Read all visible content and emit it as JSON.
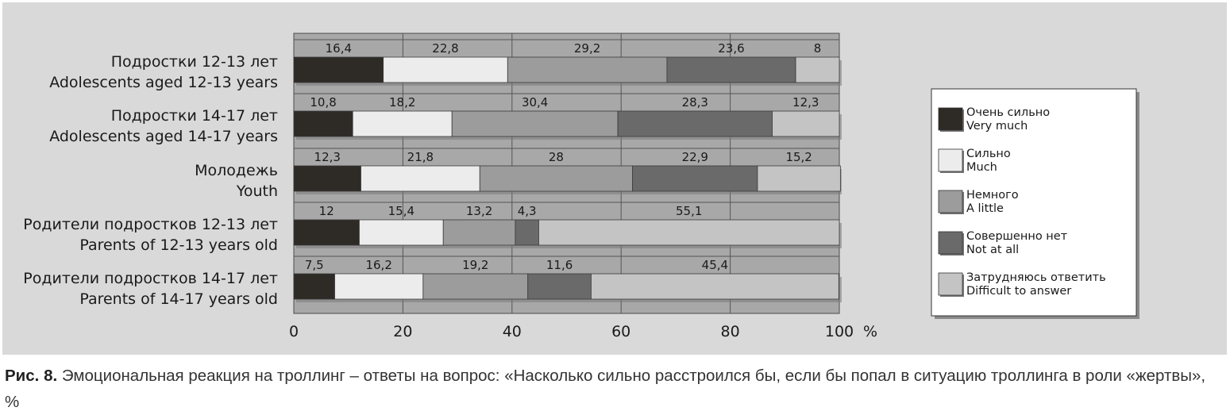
{
  "chart_data": {
    "type": "bar",
    "stacked": true,
    "orientation": "horizontal",
    "categories": [
      {
        "ru": "Подростки 12-13 лет",
        "en": "Adolescents aged 12-13 years"
      },
      {
        "ru": "Подростки 14-17 лет",
        "en": "Adolescents aged 14-17 years"
      },
      {
        "ru": "Молодежь",
        "en": "Youth"
      },
      {
        "ru": "Родители подростков 12-13 лет",
        "en": "Parents of 12-13 years old"
      },
      {
        "ru": "Родители подростков 14-17 лет",
        "en": "Parents of 14-17 years old"
      }
    ],
    "series": [
      {
        "name": "Очень сильно",
        "name_en": "Very much",
        "color": "#2e2a26",
        "values": [
          16.4,
          10.8,
          12.3,
          12,
          7.5
        ]
      },
      {
        "name": "Сильно",
        "name_en": "Much",
        "color": "#ececec",
        "values": [
          22.8,
          18.2,
          21.8,
          15.4,
          16.2
        ]
      },
      {
        "name": "Немного",
        "name_en": "A little",
        "color": "#9c9c9c",
        "values": [
          29.2,
          30.4,
          28,
          13.2,
          19.2
        ]
      },
      {
        "name": "Совершенно нет",
        "name_en": "Not at all",
        "color": "#6a6a6a",
        "values": [
          23.6,
          28.3,
          22.9,
          4.3,
          11.6
        ]
      },
      {
        "name": "Затрудняюсь ответить",
        "name_en": "Difficult to answer",
        "color": "#c4c4c4",
        "values": [
          8,
          12.3,
          15.2,
          55.1,
          45.4
        ]
      }
    ],
    "data_labels": [
      [
        "16,4",
        "22,8",
        "29,2",
        "23,6",
        "8"
      ],
      [
        "10,8",
        "18,2",
        "30,4",
        "28,3",
        "12,3"
      ],
      [
        "12,3",
        "21,8",
        "28",
        "22,9",
        "15,2"
      ],
      [
        "12",
        "15,4",
        "13,2",
        "4,3",
        "55,1"
      ],
      [
        "7,5",
        "16,2",
        "19,2",
        "11,6",
        "45,4"
      ]
    ],
    "xlim": [
      0,
      100
    ],
    "xticks": [
      "0",
      "20",
      "40",
      "60",
      "80",
      "100"
    ],
    "xunit": "%",
    "grid": true,
    "legend_position": "right"
  },
  "caption": {
    "label": "Рис. 8.",
    "text": "Эмоциональная реакция на троллинг – ответы на вопрос: «Насколько сильно расстроился бы, если бы попал в ситуацию троллинга в роли «жертвы», %"
  }
}
